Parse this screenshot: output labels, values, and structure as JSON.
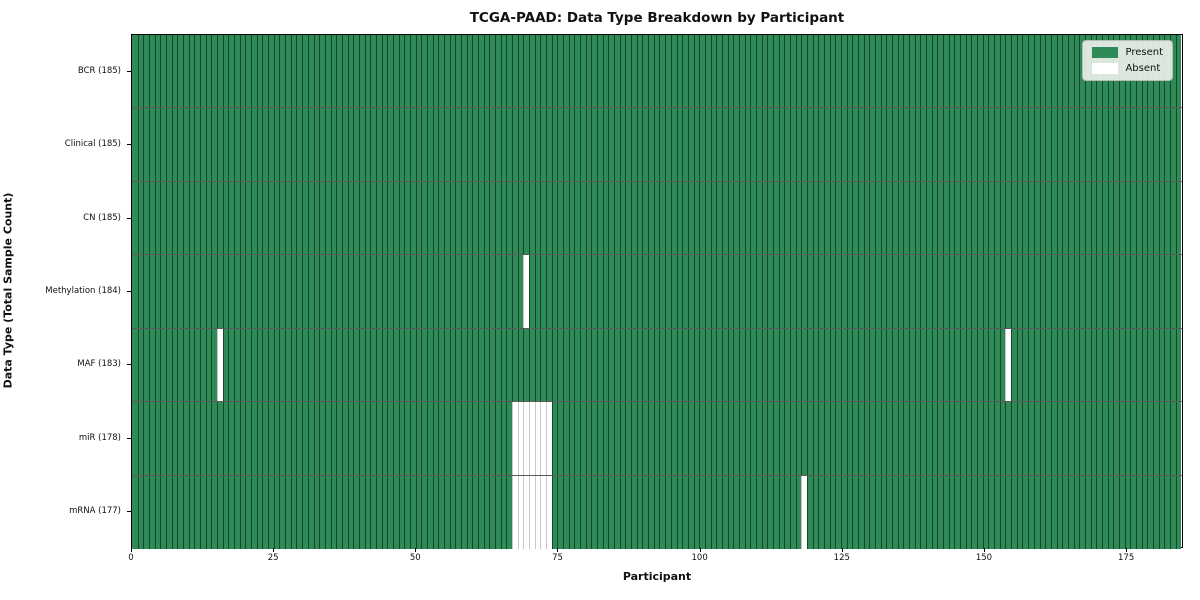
{
  "figure": {
    "title": "TCGA-PAAD: Data Type Breakdown by Participant",
    "xlabel": "Participant",
    "ylabel": "Data Type (Total Sample Count)"
  },
  "chart_data": {
    "type": "heatmap",
    "title": "TCGA-PAAD: Data Type Breakdown by Participant",
    "xlabel": "Participant",
    "ylabel": "Data Type (Total Sample Count)",
    "x_range": [
      0,
      185
    ],
    "n_participants": 185,
    "x_ticks": [
      0,
      25,
      50,
      75,
      100,
      125,
      150,
      175
    ],
    "grid": false,
    "legend_position": "upper right",
    "rows": [
      {
        "label": "BCR (185)",
        "data_type": "BCR",
        "total": 185,
        "absent_participants": []
      },
      {
        "label": "Clinical (185)",
        "data_type": "Clinical",
        "total": 185,
        "absent_participants": []
      },
      {
        "label": "CN (185)",
        "data_type": "CN",
        "total": 185,
        "absent_participants": []
      },
      {
        "label": "Methylation (184)",
        "data_type": "Methylation",
        "total": 184,
        "absent_participants": [
          69
        ]
      },
      {
        "label": "MAF (183)",
        "data_type": "MAF",
        "total": 183,
        "absent_participants": [
          15,
          154
        ]
      },
      {
        "label": "miR (178)",
        "data_type": "miR",
        "total": 178,
        "absent_participants": [
          67,
          68,
          69,
          70,
          71,
          72,
          73
        ]
      },
      {
        "label": "mRNA (177)",
        "data_type": "mRNA",
        "total": 177,
        "absent_participants": [
          67,
          68,
          69,
          70,
          71,
          72,
          73,
          118
        ]
      }
    ],
    "legend": [
      {
        "label": "Present",
        "color": "#2e8b57"
      },
      {
        "label": "Absent",
        "color": "#ffffff"
      }
    ],
    "colors": {
      "present": "#2e8b57",
      "absent": "#ffffff",
      "row_separator": "rgba(0,0,0,0.65)",
      "axis": "#000000"
    }
  }
}
